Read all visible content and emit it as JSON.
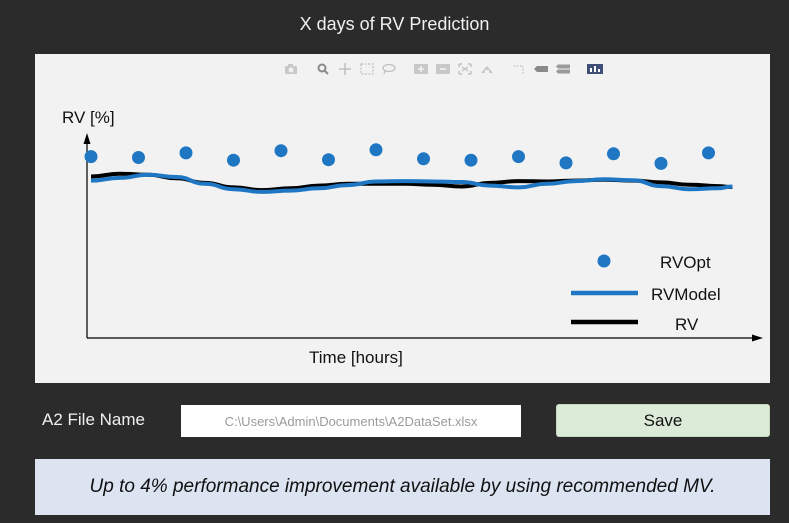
{
  "window": {
    "title": "X days of RV Prediction"
  },
  "toolbar": {
    "icons": [
      "camera-icon",
      "zoom-icon",
      "pan-icon",
      "box-select-icon",
      "lasso-select-icon",
      "zoom-in-icon",
      "zoom-out-icon",
      "autoscale-icon",
      "reset-axes-icon",
      "spike-lines-icon",
      "hover-closest-icon",
      "hover-compare-icon",
      "plotly-logo-icon"
    ]
  },
  "chart_data": {
    "type": "line",
    "title": "",
    "xlabel": "Time [hours]",
    "ylabel": "RV [%]",
    "xlim": [
      0,
      13.6
    ],
    "ylim": [
      0,
      5.6
    ],
    "legend_position": "bottom-right",
    "series": [
      {
        "name": "RVOpt",
        "style": "markers",
        "color": "#1f77c4",
        "x": [
          0,
          1,
          2,
          3,
          4,
          5,
          6,
          7,
          8,
          9,
          10,
          11,
          12,
          13
        ],
        "values": [
          4.0,
          3.98,
          4.08,
          3.92,
          4.13,
          3.93,
          4.15,
          3.95,
          3.92,
          4.0,
          3.86,
          4.06,
          3.85,
          4.08
        ]
      },
      {
        "name": "RVModel",
        "style": "line",
        "color": "#1f77c4",
        "x": [
          0,
          0.6,
          1.2,
          1.8,
          2.4,
          3.0,
          3.6,
          4.2,
          4.8,
          5.4,
          6.0,
          6.6,
          7.2,
          7.8,
          8.4,
          9.0,
          9.6,
          10.2,
          10.8,
          11.4,
          12.0,
          12.6,
          13.2,
          13.5
        ],
        "values": [
          3.47,
          3.53,
          3.6,
          3.55,
          3.4,
          3.28,
          3.22,
          3.25,
          3.3,
          3.37,
          3.45,
          3.46,
          3.45,
          3.44,
          3.36,
          3.32,
          3.4,
          3.46,
          3.5,
          3.48,
          3.35,
          3.28,
          3.3,
          3.34
        ]
      },
      {
        "name": "RV",
        "style": "line",
        "color": "#000000",
        "x": [
          0,
          0.6,
          1.2,
          1.8,
          2.4,
          3.0,
          3.6,
          4.2,
          4.8,
          5.4,
          6.0,
          6.6,
          7.2,
          7.8,
          8.4,
          9.0,
          9.6,
          10.2,
          10.8,
          11.4,
          12.0,
          12.6,
          13.2,
          13.5
        ],
        "values": [
          3.56,
          3.62,
          3.6,
          3.52,
          3.42,
          3.32,
          3.26,
          3.3,
          3.36,
          3.4,
          3.4,
          3.4,
          3.38,
          3.34,
          3.42,
          3.46,
          3.45,
          3.47,
          3.49,
          3.47,
          3.43,
          3.38,
          3.35,
          3.33
        ]
      }
    ]
  },
  "file": {
    "label": "A2 File Name",
    "value": "C:\\Users\\Admin\\Documents\\A2DataSet.xlsx",
    "placeholder": ""
  },
  "actions": {
    "save_label": "Save"
  },
  "banner": {
    "message": "Up to 4% performance improvement available by using recommended MV."
  },
  "colors": {
    "background": "#2b2b2b",
    "plot_bg": "#f2f2f2",
    "accent": "#1f77c4",
    "save_bg": "#dcebd7",
    "banner_bg": "#dce4f2"
  }
}
